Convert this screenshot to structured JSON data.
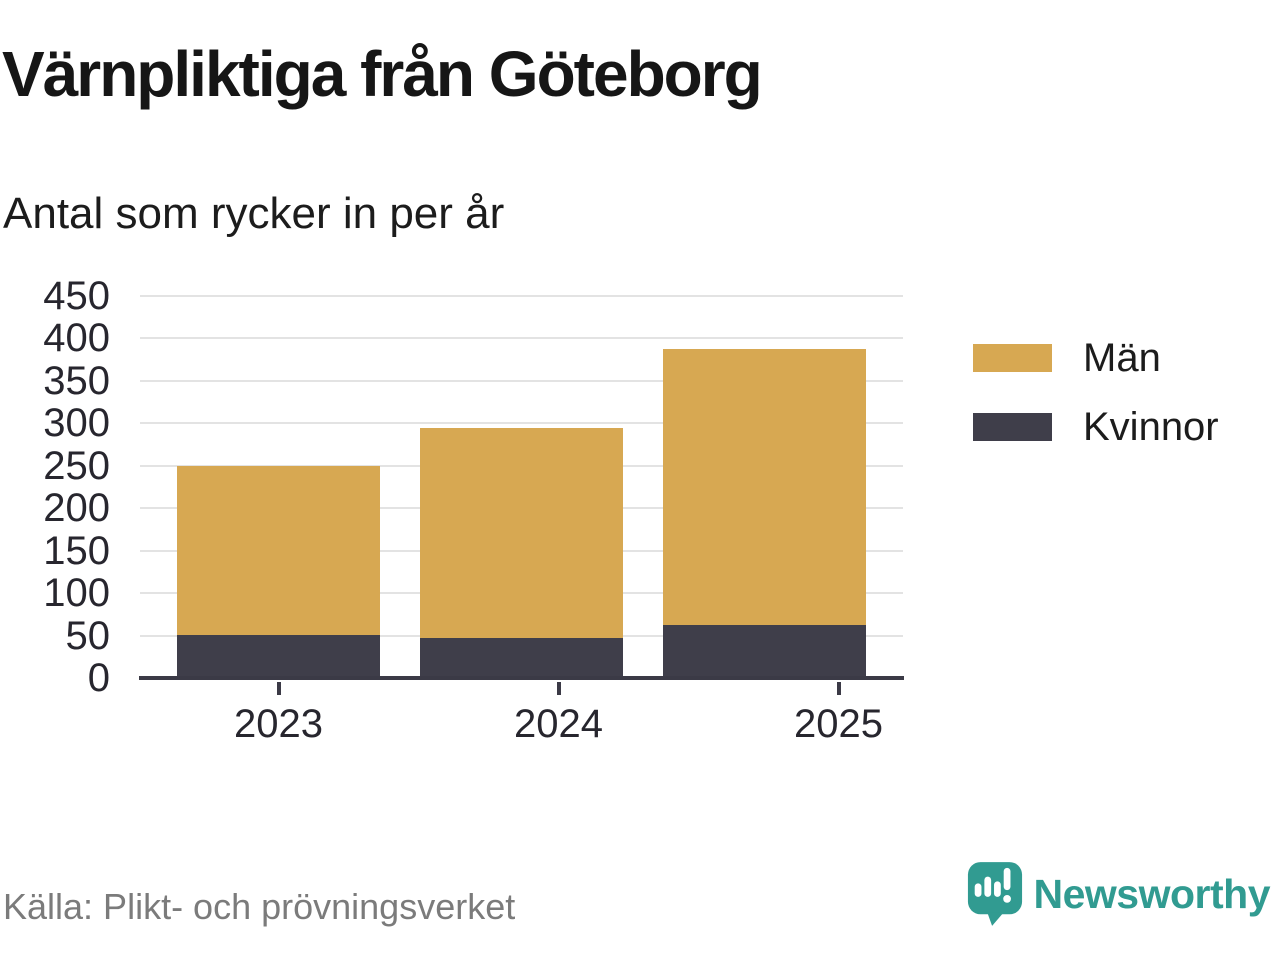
{
  "title": "Värnpliktiga från Göteborg",
  "subtitle": "Antal som rycker in per år",
  "source": "Källa: Plikt- och prövningsverket",
  "brand": {
    "name": "Newsworthy",
    "color": "#319b91",
    "icon": "newsworthy-speech-bubble-barchart-icon"
  },
  "colors": {
    "men": "#d7a852",
    "women": "#3f3e4a",
    "gridline": "#e3e3e3",
    "axis": "#3b3a46",
    "text_dark": "#27262e",
    "text_gray": "#7b7b7b"
  },
  "chart_data": {
    "type": "bar",
    "stacked": true,
    "title": "Värnpliktiga från Göteborg",
    "subtitle": "Antal som rycker in per år",
    "categories": [
      "2023",
      "2024",
      "2025"
    ],
    "series": [
      {
        "name": "Män",
        "color": "#d7a852",
        "values": [
          199,
          248,
          325
        ]
      },
      {
        "name": "Kvinnor",
        "color": "#3f3e4a",
        "values": [
          51,
          47,
          63
        ]
      }
    ],
    "totals": [
      250,
      295,
      388
    ],
    "ylim": [
      0,
      450
    ],
    "yticks": [
      0,
      50,
      100,
      150,
      200,
      250,
      300,
      350,
      400,
      450
    ],
    "grid": true,
    "legend_position": "right",
    "xlabel": "",
    "ylabel": ""
  }
}
